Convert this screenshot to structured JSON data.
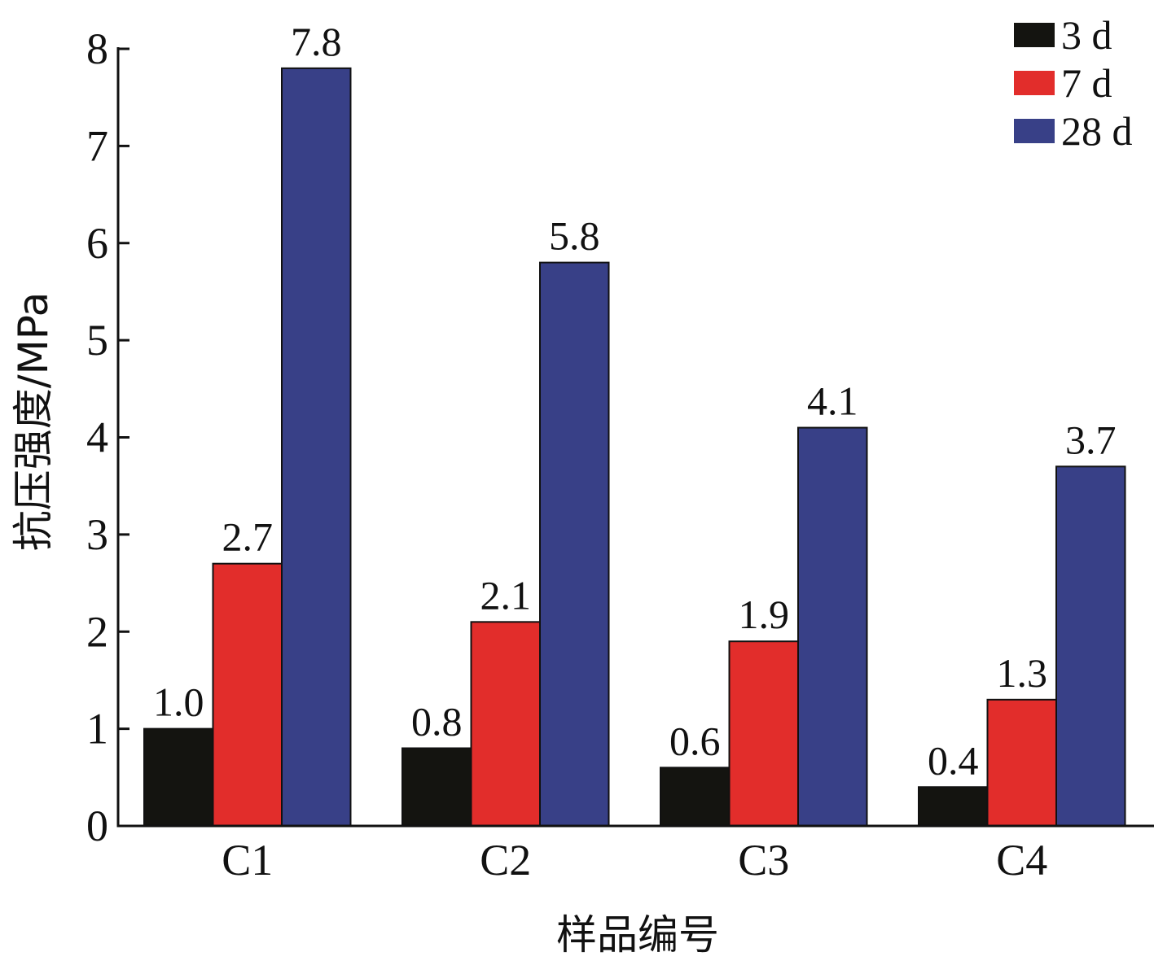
{
  "chart_data": {
    "type": "bar",
    "title": "",
    "xlabel": "样品编号",
    "ylabel": "抗压强度/MPa",
    "categories": [
      "C1",
      "C2",
      "C3",
      "C4"
    ],
    "ylim": [
      0,
      8
    ],
    "yticks": [
      "0",
      "1",
      "2",
      "3",
      "4",
      "5",
      "6",
      "7",
      "8"
    ],
    "grid": false,
    "legend_position": "top-right",
    "series": [
      {
        "name": "3 d",
        "color": "#141410",
        "values": [
          1.0,
          0.8,
          0.6,
          0.4
        ],
        "labels": [
          "1.0",
          "0.8",
          "0.6",
          "0.4"
        ]
      },
      {
        "name": "7 d",
        "color": "#e22d2b",
        "values": [
          2.7,
          2.1,
          1.9,
          1.3
        ],
        "labels": [
          "2.7",
          "2.1",
          "1.9",
          "1.3"
        ]
      },
      {
        "name": "28 d",
        "color": "#384087",
        "values": [
          7.8,
          5.8,
          4.1,
          3.7
        ],
        "labels": [
          "7.8",
          "5.8",
          "4.1",
          "3.7"
        ]
      }
    ]
  }
}
